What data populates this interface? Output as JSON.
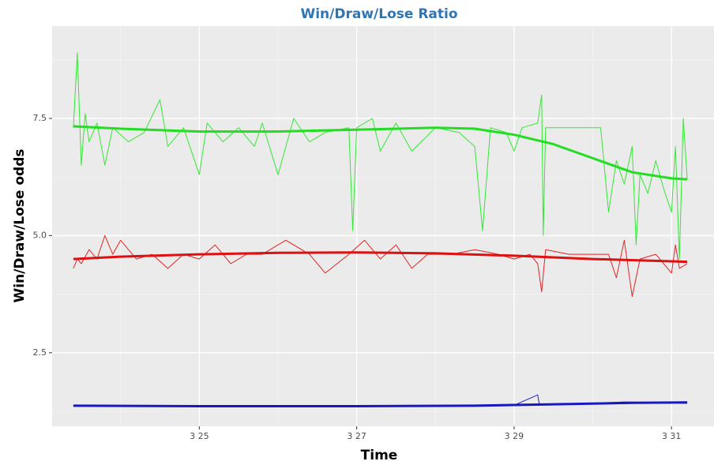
{
  "chart_data": {
    "type": "line",
    "title": "Win/Draw/Lose Ratio",
    "x_label": "Time",
    "y_label": "Win/Draw/Lose odds",
    "xlim": [
      23.13,
      31.54
    ],
    "ylim": [
      0.93,
      9.47
    ],
    "xticks": [
      {
        "value": 25,
        "label": "3 25"
      },
      {
        "value": 27,
        "label": "3 27"
      },
      {
        "value": 29,
        "label": "3 29"
      },
      {
        "value": 31,
        "label": "3 31"
      }
    ],
    "yticks": [
      {
        "value": 2.5,
        "label": "2.5"
      },
      {
        "value": 5,
        "label": "5.0"
      },
      {
        "value": 7.5,
        "label": "7.5"
      }
    ],
    "xminor": [
      24,
      26,
      28,
      30
    ],
    "yminor": [
      1.25,
      3.75,
      6.25,
      8.75
    ],
    "grid": true,
    "series": [
      {
        "color": "#33e833",
        "x": [
          23.4,
          23.45,
          23.5,
          23.55,
          23.6,
          23.7,
          23.8,
          23.9,
          24.1,
          24.3,
          24.5,
          24.6,
          24.8,
          25.0,
          25.1,
          25.3,
          25.5,
          25.7,
          25.8,
          26.0,
          26.2,
          26.4,
          26.6,
          26.9,
          26.95,
          27.0,
          27.2,
          27.3,
          27.5,
          27.7,
          28.0,
          28.3,
          28.5,
          28.6,
          28.7,
          28.9,
          29.0,
          29.1,
          29.3,
          29.35,
          29.37,
          29.4,
          29.6,
          30.1,
          30.2,
          30.3,
          30.4,
          30.5,
          30.55,
          30.6,
          30.7,
          30.8,
          30.9,
          31.0,
          31.05,
          31.1,
          31.15,
          31.2
        ],
        "values": [
          7.3,
          8.9,
          6.5,
          7.6,
          7.0,
          7.4,
          6.5,
          7.3,
          7.0,
          7.2,
          7.9,
          6.9,
          7.3,
          6.3,
          7.4,
          7.0,
          7.3,
          6.9,
          7.4,
          6.3,
          7.5,
          7.0,
          7.2,
          7.3,
          5.1,
          7.3,
          7.5,
          6.8,
          7.4,
          6.8,
          7.3,
          7.2,
          6.9,
          5.1,
          7.3,
          7.2,
          6.8,
          7.3,
          7.4,
          8.0,
          5.0,
          7.3,
          7.3,
          7.3,
          5.5,
          6.6,
          6.1,
          6.9,
          4.8,
          6.3,
          5.9,
          6.6,
          6.0,
          5.5,
          6.9,
          4.5,
          7.5,
          6.2
        ]
      },
      {
        "color": "#e02424",
        "x": [
          23.4,
          23.45,
          23.5,
          23.6,
          23.7,
          23.8,
          23.9,
          24.0,
          24.2,
          24.4,
          24.6,
          24.8,
          25.0,
          25.2,
          25.4,
          25.6,
          25.8,
          26.1,
          26.4,
          26.6,
          26.9,
          27.1,
          27.3,
          27.5,
          27.7,
          27.9,
          28.2,
          28.5,
          28.8,
          29.0,
          29.2,
          29.3,
          29.35,
          29.4,
          29.7,
          30.2,
          30.3,
          30.4,
          30.5,
          30.6,
          30.8,
          31.0,
          31.05,
          31.1,
          31.2
        ],
        "values": [
          4.3,
          4.5,
          4.4,
          4.7,
          4.5,
          5.0,
          4.6,
          4.9,
          4.5,
          4.6,
          4.3,
          4.6,
          4.5,
          4.8,
          4.4,
          4.6,
          4.6,
          4.9,
          4.6,
          4.2,
          4.6,
          4.9,
          4.5,
          4.8,
          4.3,
          4.6,
          4.6,
          4.7,
          4.6,
          4.5,
          4.6,
          4.4,
          3.8,
          4.7,
          4.6,
          4.6,
          4.1,
          4.9,
          3.7,
          4.5,
          4.6,
          4.2,
          4.8,
          4.3,
          4.4
        ]
      },
      {
        "color": "#2020cc",
        "x": [
          23.4,
          24,
          25,
          26,
          27,
          28,
          29,
          29.3,
          29.32,
          29.6,
          30,
          30.4,
          30.8,
          31.2
        ],
        "values": [
          1.37,
          1.37,
          1.36,
          1.36,
          1.36,
          1.37,
          1.38,
          1.6,
          1.4,
          1.4,
          1.42,
          1.45,
          1.44,
          1.42
        ]
      }
    ],
    "trends": [
      {
        "color": "#22dd22",
        "x": [
          23.4,
          24,
          25,
          26,
          27,
          28,
          28.5,
          29,
          29.5,
          30,
          30.5,
          31,
          31.2
        ],
        "values": [
          7.33,
          7.28,
          7.22,
          7.22,
          7.26,
          7.3,
          7.28,
          7.15,
          6.95,
          6.65,
          6.35,
          6.22,
          6.2
        ]
      },
      {
        "color": "#dd1111",
        "x": [
          23.4,
          24,
          25,
          26,
          27,
          28,
          29,
          30,
          31,
          31.2
        ],
        "values": [
          4.5,
          4.55,
          4.6,
          4.63,
          4.64,
          4.62,
          4.57,
          4.5,
          4.45,
          4.44
        ]
      },
      {
        "color": "#1818c0",
        "x": [
          23.4,
          25,
          27,
          28.5,
          29.5,
          30.5,
          31.2
        ],
        "values": [
          1.37,
          1.36,
          1.36,
          1.37,
          1.4,
          1.43,
          1.44
        ]
      }
    ]
  }
}
